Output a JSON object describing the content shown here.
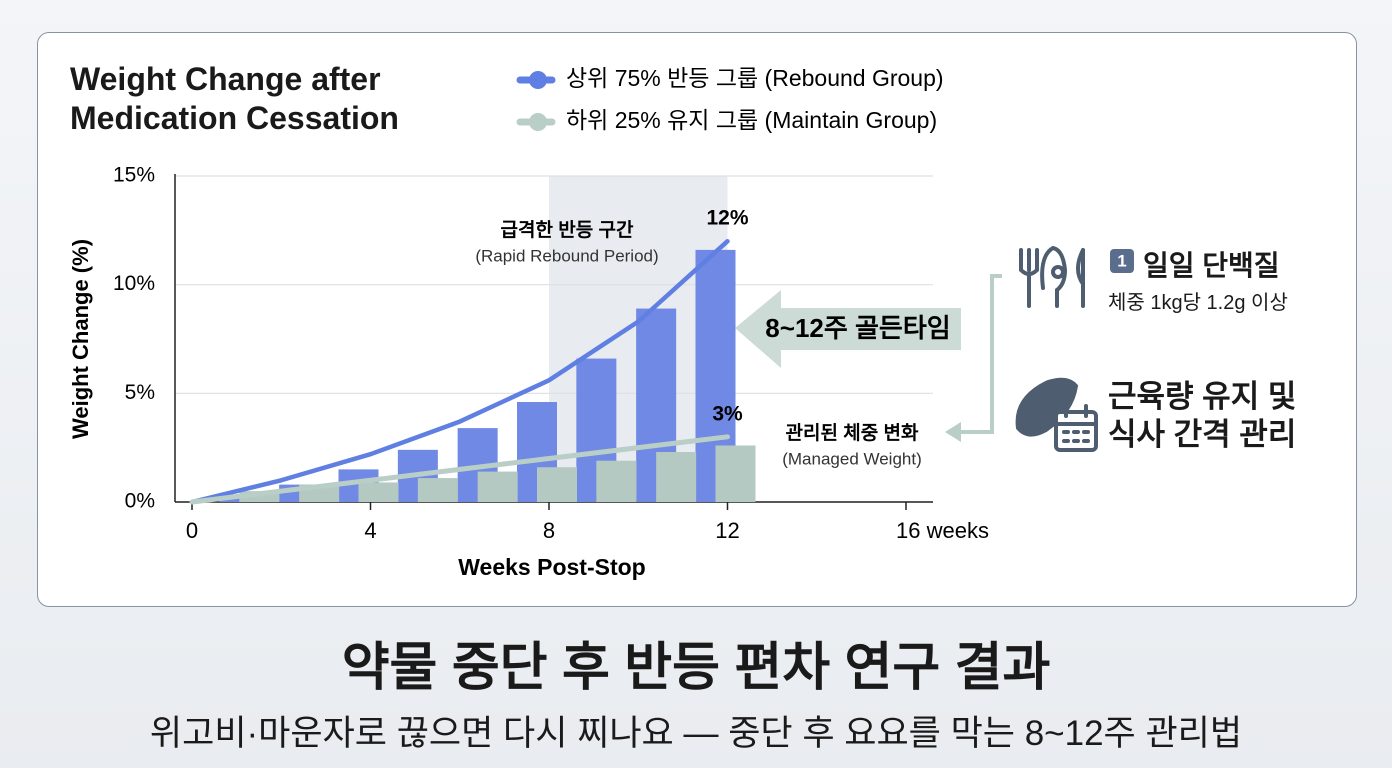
{
  "chart_data": {
    "type": "combo",
    "title": "Weight Change after\nMedication Cessation",
    "x_label": "Weeks Post-Stop",
    "y_label": "Weight Change (%)",
    "x": [
      0,
      2,
      4,
      6,
      8,
      10,
      12
    ],
    "bar_x": [
      1.33,
      2.67,
      4,
      5.33,
      6.67,
      8,
      9.33,
      10.67,
      12
    ],
    "series": [
      {
        "name": "상위 75% 반등 그룹 (Rebound Group)",
        "color": "#5f7fe2",
        "bar_color": "#6f89e4",
        "values": [
          0,
          1.0,
          2.2,
          3.7,
          5.6,
          8.3,
          12
        ],
        "value_labels": [
          null,
          null,
          null,
          null,
          null,
          null,
          "12%"
        ],
        "bar_values": [
          0.3,
          0.8,
          1.5,
          2.4,
          3.4,
          4.6,
          6.6,
          8.9,
          11.6
        ]
      },
      {
        "name": "하위 25% 유지 그룹 (Maintain Group)",
        "color": "#b8cec6",
        "bar_color": "#b4c9c1",
        "values": [
          0,
          0.5,
          1,
          1.5,
          2,
          2.5,
          3
        ],
        "value_labels": [
          null,
          null,
          null,
          null,
          null,
          null,
          "3%"
        ],
        "bar_values": [
          0.5,
          0.8,
          0.9,
          1.1,
          1.4,
          1.6,
          1.9,
          2.3,
          2.6
        ]
      }
    ],
    "xlim": [
      0,
      16
    ],
    "ylim": [
      0,
      15
    ],
    "xticks": [
      0,
      4,
      8,
      12,
      {
        "value": 16,
        "label": "16 weeks"
      }
    ],
    "yticks": [
      {
        "value": 0,
        "label": "0%"
      },
      {
        "value": 5,
        "label": "5%"
      },
      {
        "value": 10,
        "label": "10%"
      },
      {
        "value": 15,
        "label": "15%"
      }
    ],
    "grid": true,
    "highlight": {
      "x": [
        8,
        12
      ],
      "label": "급격한 반등 구간",
      "sublabel": "(Rapid Rebound Period)"
    },
    "managed_note": {
      "label": "관리된 체중 변화",
      "sublabel": "(Managed Weight)"
    },
    "arrow_note": "8~12주 골든타임",
    "tips": [
      {
        "badge": "1",
        "title": "일일 단백질",
        "text": "체중 1kg당 1.2g 이상"
      },
      {
        "title": "근육량 유지 및\n식사 간격 관리"
      }
    ]
  },
  "footer": {
    "title": "약물 중단 후 반등 편차 연구 결과",
    "subtitle": "위고비·마운자로 끊으면 다시 찌나요 — 중단 후 요요를 막는 8~12주 관리법"
  }
}
